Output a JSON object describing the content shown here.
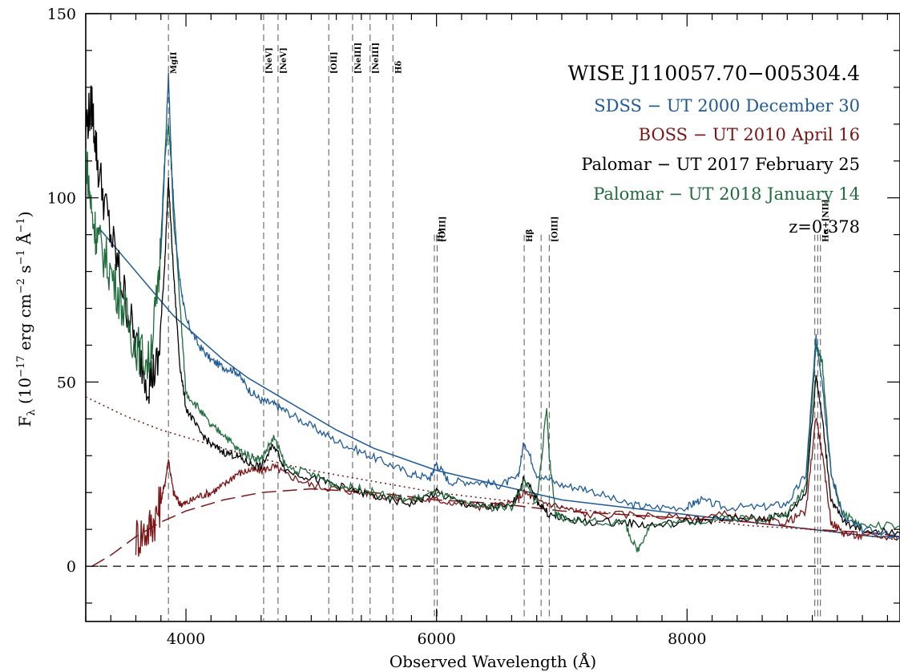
{
  "chart_data": {
    "type": "line",
    "title": "WISE J110057.70−005304.4",
    "xlabel": "Observed Wavelength (Å)",
    "ylabel": "Fλ (10⁻¹⁷ erg cm⁻² s⁻¹ Å⁻¹)",
    "ylabel_parts": {
      "f": "F",
      "lambda": "λ",
      "open": " (10",
      "exp17": "−17",
      "erg": " erg cm",
      "exp2": "−2",
      "s": " s",
      "exp1a": "−1",
      "ang": " Å",
      "exp1b": "−1",
      "close": ")"
    },
    "xlim": [
      3200,
      9700
    ],
    "ylim": [
      -15,
      150
    ],
    "x_ticks": [
      4000,
      6000,
      8000
    ],
    "y_ticks": [
      0,
      50,
      100,
      150
    ],
    "x_tick_labels": [
      "4000",
      "6000",
      "8000"
    ],
    "y_tick_labels": [
      "0",
      "50",
      "100",
      "150"
    ],
    "redshift": "z=0.378",
    "legend_placement": "top-right",
    "lines": [
      {
        "label": "MgII",
        "x": [
          3860
        ]
      },
      {
        "label": "[NeV]",
        "x": [
          4620
        ]
      },
      {
        "label": "[NeV]",
        "x": [
          4735
        ]
      },
      {
        "label": "[OII]",
        "x": [
          5140
        ]
      },
      {
        "label": "[NeIII]",
        "x": [
          5330
        ]
      },
      {
        "label": "[NeIII]",
        "x": [
          5470
        ]
      },
      {
        "label": "Hδ",
        "x": [
          5652
        ]
      },
      {
        "label": "Hγ",
        "x": [
          5983
        ]
      },
      {
        "label": "[OIII]",
        "x": [
          6005
        ]
      },
      {
        "label": "Hβ",
        "x": [
          6700
        ]
      },
      {
        "label": "[OIII]",
        "x": [
          6835,
          6900
        ]
      },
      {
        "label": "Hα+[NII]",
        "x": [
          9020,
          9043,
          9065
        ]
      }
    ],
    "series": [
      {
        "name": "SDSS − UT 2000 December 30",
        "color": "#1f5a96",
        "x": [
          3800,
          3860,
          3900,
          3950,
          4000,
          4100,
          4200,
          4300,
          4400,
          4500,
          4600,
          4700,
          4800,
          5000,
          5200,
          5400,
          5600,
          5800,
          5950,
          6000,
          6100,
          6300,
          6500,
          6650,
          6700,
          6800,
          7000,
          7200,
          7500,
          7700,
          8000,
          8100,
          8300,
          8600,
          8800,
          8950,
          9030,
          9080,
          9150,
          9250,
          9400,
          9700
        ],
        "y": [
          84,
          134,
          94,
          78,
          67,
          60,
          56,
          54,
          53,
          48,
          45,
          44,
          42,
          38,
          34,
          31,
          28,
          25,
          24,
          28,
          23,
          23,
          22,
          24,
          34,
          25,
          22,
          21,
          17,
          16,
          16,
          18,
          16,
          16,
          17,
          25,
          62,
          50,
          25,
          13,
          10,
          8
        ]
      },
      {
        "name": "BOSS − UT 2010 April 16",
        "color": "#7b1416",
        "x": [
          3600,
          3700,
          3780,
          3830,
          3860,
          3900,
          3950,
          4000,
          4100,
          4200,
          4300,
          4400,
          4500,
          4600,
          4700,
          4800,
          5000,
          5200,
          5400,
          5600,
          5800,
          6000,
          6200,
          6400,
          6600,
          6700,
          6800,
          7000,
          7200,
          7600,
          8000,
          8300,
          8600,
          8800,
          8950,
          9030,
          9080,
          9150,
          9250,
          9400,
          9700
        ],
        "y": [
          8,
          10,
          15,
          22,
          29,
          20,
          17,
          17,
          19,
          20,
          22,
          25,
          26,
          26,
          27,
          25,
          22,
          21,
          20,
          19,
          18,
          18,
          17,
          16,
          17,
          20,
          18,
          16,
          14,
          14,
          13,
          14,
          12,
          12,
          15,
          41,
          30,
          12,
          9,
          8,
          8
        ]
      },
      {
        "name": "Palomar − UT 2017 February 25",
        "color": "#000000",
        "x": [
          3200,
          3250,
          3300,
          3400,
          3500,
          3600,
          3700,
          3780,
          3830,
          3860,
          3900,
          3950,
          4000,
          4100,
          4200,
          4300,
          4400,
          4500,
          4600,
          4700,
          4800,
          5000,
          5200,
          5400,
          5600,
          5800,
          6000,
          6200,
          6400,
          6600,
          6700,
          6800,
          6900,
          7000,
          7200,
          7500,
          7700,
          8000,
          8300,
          8600,
          8800,
          8950,
          9030,
          9080,
          9150,
          9250,
          9400,
          9700
        ],
        "y": [
          120,
          125,
          108,
          90,
          75,
          60,
          50,
          55,
          82,
          105,
          80,
          55,
          43,
          37,
          33,
          31,
          30,
          28,
          27,
          33,
          26,
          24,
          22,
          20,
          18,
          17,
          20,
          17,
          16,
          16,
          24,
          18,
          14,
          13,
          12,
          12,
          11,
          12,
          13,
          13,
          14,
          20,
          52,
          40,
          18,
          12,
          10,
          9
        ]
      },
      {
        "name": "Palomar − UT 2018 January 14",
        "color": "#1e6b3c",
        "x": [
          3200,
          3250,
          3300,
          3400,
          3500,
          3600,
          3700,
          3780,
          3830,
          3860,
          3900,
          3950,
          4000,
          4100,
          4200,
          4300,
          4400,
          4500,
          4600,
          4700,
          4800,
          5000,
          5200,
          5400,
          5600,
          5800,
          6000,
          6200,
          6400,
          6600,
          6700,
          6800,
          6880,
          6900,
          6950,
          7000,
          7200,
          7500,
          7600,
          7700,
          8000,
          8300,
          8600,
          8800,
          8950,
          9030,
          9080,
          9150,
          9250,
          9400,
          9700
        ],
        "y": [
          112,
          95,
          88,
          80,
          70,
          60,
          55,
          75,
          110,
          120,
          100,
          72,
          47,
          43,
          38,
          36,
          32,
          30,
          29,
          35,
          27,
          25,
          22,
          21,
          19,
          18,
          20,
          17,
          16,
          16,
          23,
          17,
          43,
          30,
          14,
          13,
          12,
          12,
          4,
          11,
          12,
          13,
          13,
          14,
          22,
          60,
          55,
          25,
          14,
          11,
          11
        ]
      }
    ],
    "models": [
      {
        "style": "solid",
        "color": "#1f5a96",
        "x": [
          3300,
          3500,
          3700,
          3900,
          4100,
          4300,
          4500,
          4700,
          4900,
          5200,
          5500,
          6000,
          6500,
          7000,
          7500,
          8000,
          8500,
          9000,
          9500,
          9700
        ],
        "y": [
          92,
          84,
          76,
          68,
          62,
          56,
          51,
          47,
          43,
          37,
          32,
          26,
          22,
          18,
          16,
          14,
          12,
          10,
          8,
          8
        ]
      },
      {
        "style": "dotted",
        "color": "#7b1416",
        "x": [
          3200,
          3500,
          3800,
          4000,
          4500,
          5000,
          5500,
          6000,
          6500,
          7000,
          7500,
          8000,
          8500,
          9000,
          9500,
          9700
        ],
        "y": [
          46,
          41,
          37,
          35,
          30,
          26,
          23,
          20,
          18,
          16,
          14,
          13,
          11,
          10,
          8,
          7
        ]
      },
      {
        "style": "dashed",
        "color": "#7b1416",
        "x": [
          3250,
          3400,
          3600,
          3800,
          4000,
          4300,
          4600,
          5000,
          5500,
          6000,
          6500,
          7000,
          7500,
          8000,
          8500,
          9000,
          9500,
          9700
        ],
        "y": [
          0,
          3,
          8,
          12,
          15,
          18,
          20,
          21,
          20,
          18,
          17,
          15,
          14,
          13,
          12,
          10,
          9,
          8
        ]
      }
    ]
  }
}
